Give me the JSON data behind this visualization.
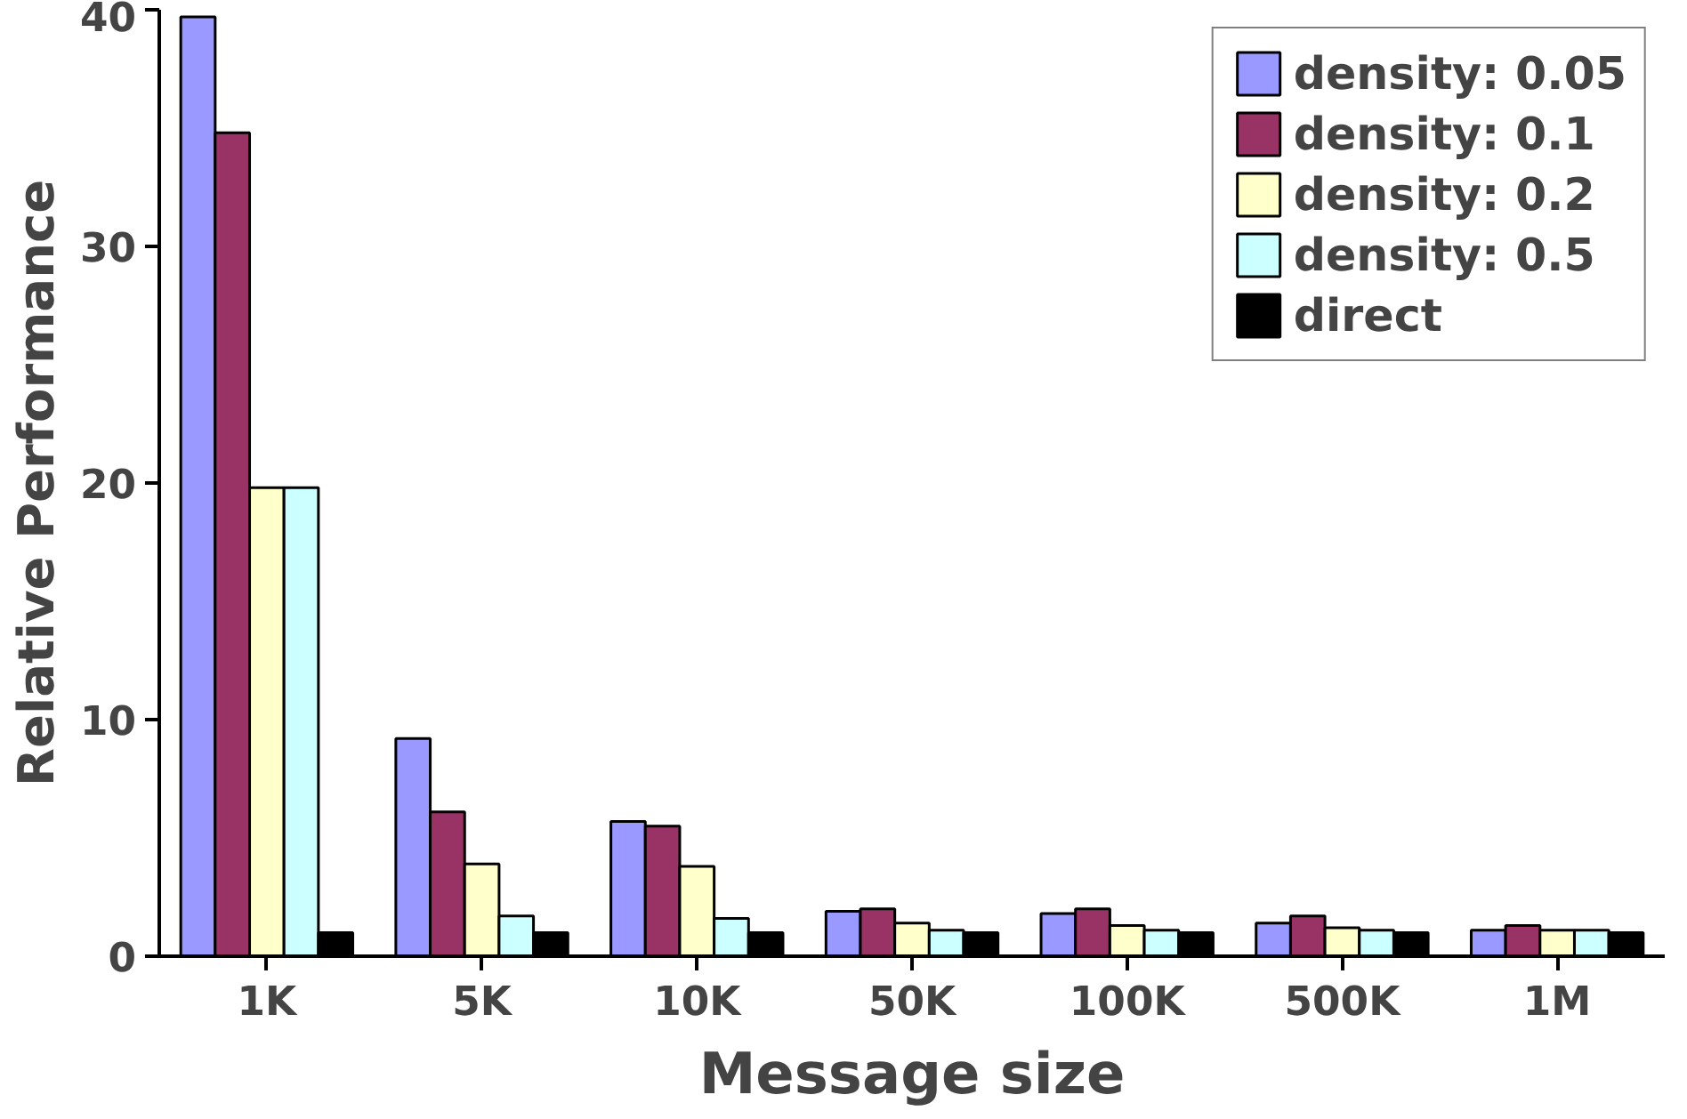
{
  "chart_data": {
    "type": "bar",
    "xlabel": "Message size",
    "ylabel": "Relative Performance",
    "categories": [
      "1K",
      "5K",
      "10K",
      "50K",
      "100K",
      "500K",
      "1M"
    ],
    "series": [
      {
        "name": "density: 0.05",
        "color": "#9999ff",
        "values": [
          39.7,
          9.2,
          5.7,
          1.9,
          1.8,
          1.4,
          1.1
        ]
      },
      {
        "name": "density: 0.1",
        "color": "#993366",
        "values": [
          34.8,
          6.1,
          5.5,
          2.0,
          2.0,
          1.7,
          1.3
        ]
      },
      {
        "name": "density: 0.2",
        "color": "#ffffcc",
        "values": [
          19.8,
          3.9,
          3.8,
          1.4,
          1.3,
          1.2,
          1.1
        ]
      },
      {
        "name": "density: 0.5",
        "color": "#ccffff",
        "values": [
          19.8,
          1.7,
          1.6,
          1.1,
          1.1,
          1.1,
          1.1
        ]
      },
      {
        "name": "direct",
        "color": "#000000",
        "values": [
          1.0,
          1.0,
          1.0,
          1.0,
          1.0,
          1.0,
          1.0
        ]
      }
    ],
    "ylim": [
      0,
      40
    ],
    "yticks": [
      0,
      10,
      20,
      30,
      40
    ],
    "grid": false,
    "legend": "top right"
  }
}
